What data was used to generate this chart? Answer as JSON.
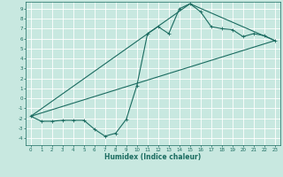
{
  "xlabel": "Humidex (Indice chaleur)",
  "ylabel": "",
  "bg_color": "#c8e8e0",
  "grid_color": "#ffffff",
  "line_color": "#1a6b60",
  "xlim": [
    -0.5,
    23.5
  ],
  "ylim": [
    -4.7,
    9.7
  ],
  "xticks": [
    0,
    1,
    2,
    3,
    4,
    5,
    6,
    7,
    8,
    9,
    10,
    11,
    12,
    13,
    14,
    15,
    16,
    17,
    18,
    19,
    20,
    21,
    22,
    23
  ],
  "yticks": [
    -4,
    -3,
    -2,
    -1,
    0,
    1,
    2,
    3,
    4,
    5,
    6,
    7,
    8,
    9
  ],
  "curve1_x": [
    0,
    1,
    2,
    3,
    4,
    5,
    6,
    7,
    8,
    9,
    10,
    11,
    12,
    13,
    14,
    15,
    16,
    17,
    18,
    19,
    20,
    21,
    22,
    23
  ],
  "curve1_y": [
    -1.8,
    -2.3,
    -2.3,
    -2.2,
    -2.2,
    -2.2,
    -3.1,
    -3.8,
    -3.5,
    -2.1,
    1.3,
    6.5,
    7.2,
    6.5,
    9.0,
    9.5,
    8.7,
    7.2,
    7.0,
    6.9,
    6.2,
    6.5,
    6.3,
    5.8
  ],
  "curve2_x": [
    0,
    23
  ],
  "curve2_y": [
    -1.8,
    5.8
  ],
  "curve3_x": [
    0,
    15,
    23
  ],
  "curve3_y": [
    -1.8,
    9.5,
    5.8
  ],
  "marker_size": 2.5,
  "linewidth": 0.8
}
